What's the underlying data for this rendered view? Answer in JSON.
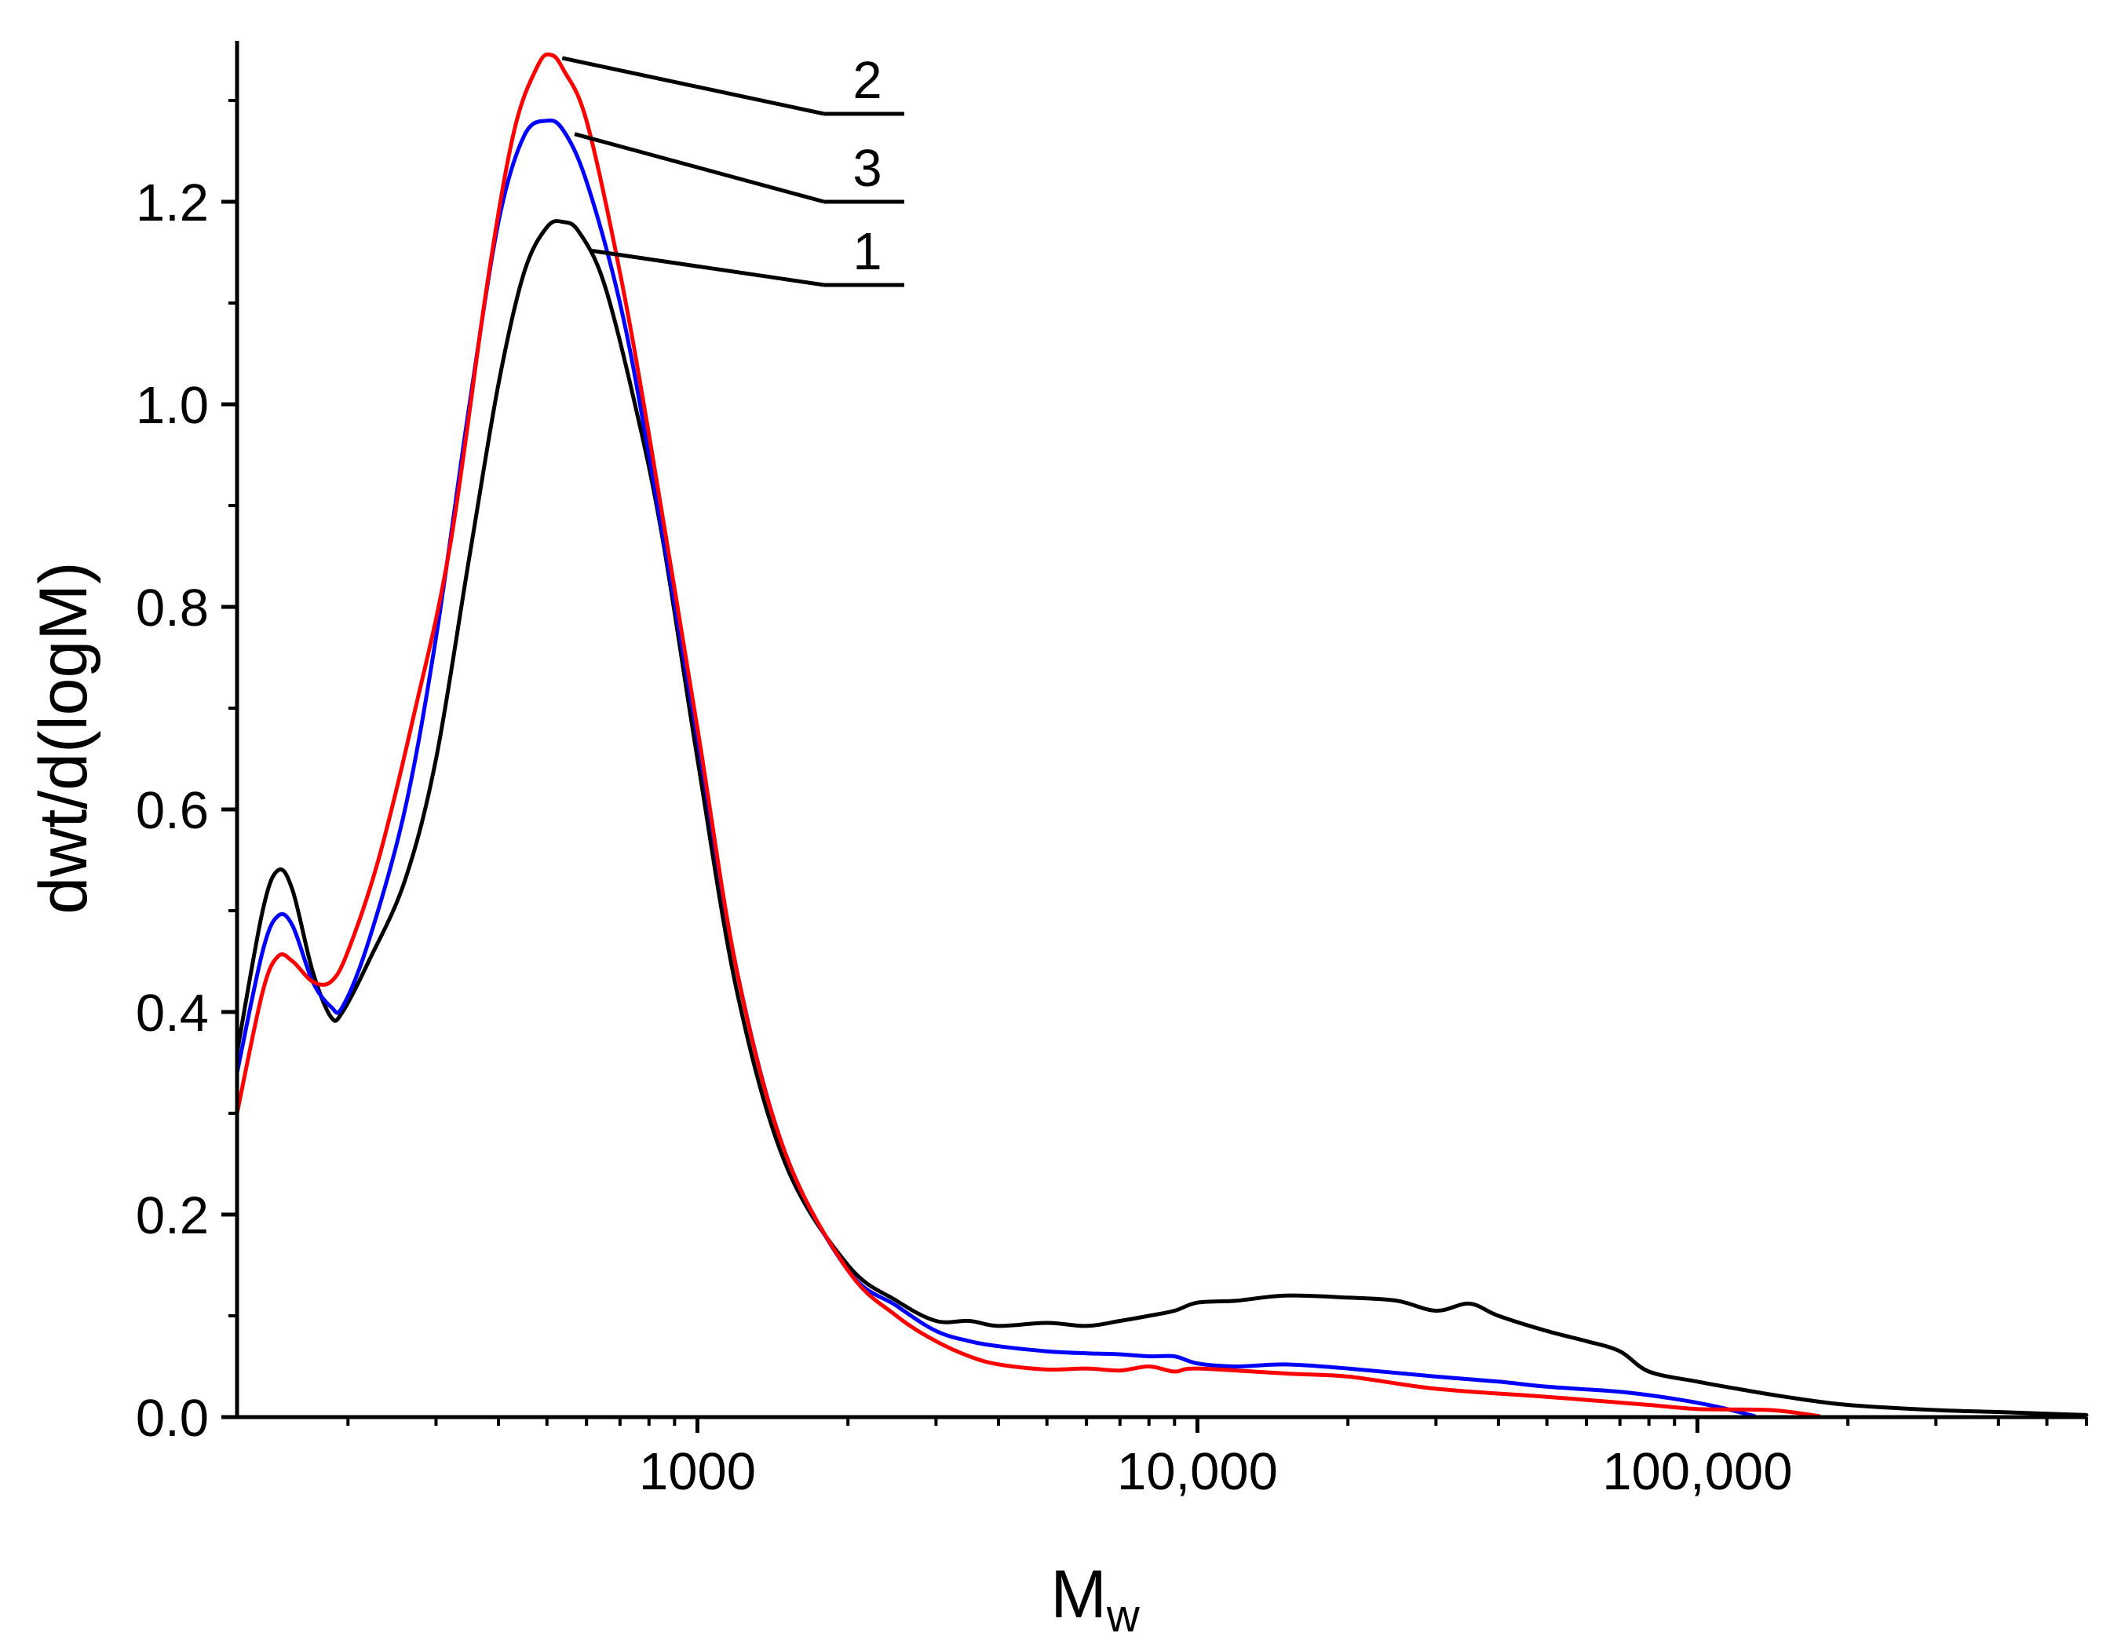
{
  "chart_data": {
    "type": "line",
    "title": "",
    "xlabel": "M",
    "xlabel_subscript": "w",
    "ylabel": "dwt/d(logM)",
    "xscale": "log",
    "xlim": [
      120,
      600000
    ],
    "ylim": [
      0,
      1.35
    ],
    "x_ticks": [
      {
        "value": 1000,
        "label": "1000"
      },
      {
        "value": 10000,
        "label": "10,000"
      },
      {
        "value": 100000,
        "label": "100,000"
      }
    ],
    "y_ticks": [
      {
        "value": 0.0,
        "label": "0.0"
      },
      {
        "value": 0.2,
        "label": "0.2"
      },
      {
        "value": 0.4,
        "label": "0.4"
      },
      {
        "value": 0.6,
        "label": "0.6"
      },
      {
        "value": 0.8,
        "label": "0.8"
      },
      {
        "value": 1.0,
        "label": "1.0"
      },
      {
        "value": 1.2,
        "label": "1.2"
      }
    ],
    "grid": false,
    "series": [
      {
        "name": "1",
        "color": "#000000",
        "x": [
          120,
          135,
          145,
          155,
          170,
          185,
          195,
          220,
          260,
          300,
          350,
          400,
          450,
          500,
          540,
          580,
          650,
          750,
          850,
          1000,
          1200,
          1500,
          2000,
          2500,
          3000,
          3500,
          4000,
          5000,
          6000,
          7000,
          8000,
          9000,
          10000,
          12000,
          15000,
          20000,
          25000,
          30000,
          35000,
          40000,
          50000,
          60000,
          70000,
          80000,
          100000,
          120000,
          150000,
          200000,
          300000,
          400000,
          600000
        ],
        "values": [
          0.36,
          0.5,
          0.54,
          0.52,
          0.44,
          0.395,
          0.4,
          0.45,
          0.53,
          0.65,
          0.85,
          1.02,
          1.13,
          1.175,
          1.18,
          1.17,
          1.12,
          1.0,
          0.87,
          0.65,
          0.42,
          0.25,
          0.15,
          0.115,
          0.095,
          0.095,
          0.09,
          0.093,
          0.09,
          0.095,
          0.1,
          0.105,
          0.113,
          0.115,
          0.12,
          0.118,
          0.115,
          0.105,
          0.112,
          0.1,
          0.085,
          0.075,
          0.065,
          0.045,
          0.035,
          0.028,
          0.02,
          0.012,
          0.007,
          0.005,
          0.002
        ]
      },
      {
        "name": "2",
        "color": "#ff0000",
        "x": [
          120,
          135,
          145,
          155,
          170,
          185,
          200,
          230,
          270,
          320,
          380,
          430,
          480,
          510,
          540,
          600,
          700,
          800,
          1000,
          1200,
          1500,
          2000,
          2500,
          3000,
          3500,
          4000,
          5000,
          6000,
          7000,
          8000,
          9000,
          10000,
          15000,
          20000,
          30000,
          50000,
          80000,
          100000,
          140000,
          175000
        ],
        "values": [
          0.3,
          0.42,
          0.455,
          0.45,
          0.43,
          0.43,
          0.46,
          0.55,
          0.69,
          0.86,
          1.12,
          1.27,
          1.335,
          1.345,
          1.33,
          1.28,
          1.13,
          0.97,
          0.68,
          0.44,
          0.26,
          0.145,
          0.1,
          0.075,
          0.06,
          0.052,
          0.047,
          0.048,
          0.046,
          0.05,
          0.045,
          0.048,
          0.043,
          0.04,
          0.028,
          0.02,
          0.012,
          0.008,
          0.007,
          0.001
        ]
      },
      {
        "name": "3",
        "color": "#0000ff",
        "x": [
          120,
          135,
          145,
          155,
          170,
          185,
          195,
          220,
          260,
          300,
          350,
          400,
          450,
          500,
          540,
          600,
          700,
          800,
          1000,
          1200,
          1500,
          2000,
          2500,
          3000,
          3500,
          4000,
          5000,
          6000,
          7000,
          8000,
          9000,
          10000,
          12000,
          15000,
          20000,
          30000,
          40000,
          50000,
          70000,
          90000,
          110000,
          130000
        ],
        "values": [
          0.34,
          0.46,
          0.495,
          0.485,
          0.43,
          0.405,
          0.405,
          0.47,
          0.6,
          0.77,
          1.0,
          1.18,
          1.265,
          1.28,
          1.27,
          1.22,
          1.1,
          0.95,
          0.67,
          0.44,
          0.26,
          0.145,
          0.11,
          0.085,
          0.075,
          0.07,
          0.065,
          0.063,
          0.062,
          0.06,
          0.06,
          0.053,
          0.05,
          0.052,
          0.048,
          0.04,
          0.035,
          0.03,
          0.025,
          0.018,
          0.01,
          0.001
        ]
      }
    ],
    "annotations": [
      {
        "label": "2",
        "series": "2",
        "x": 510,
        "y": 1.345
      },
      {
        "label": "3",
        "series": "3",
        "x": 540,
        "y": 1.27
      },
      {
        "label": "1",
        "series": "1",
        "x": 580,
        "y": 1.155
      }
    ]
  }
}
